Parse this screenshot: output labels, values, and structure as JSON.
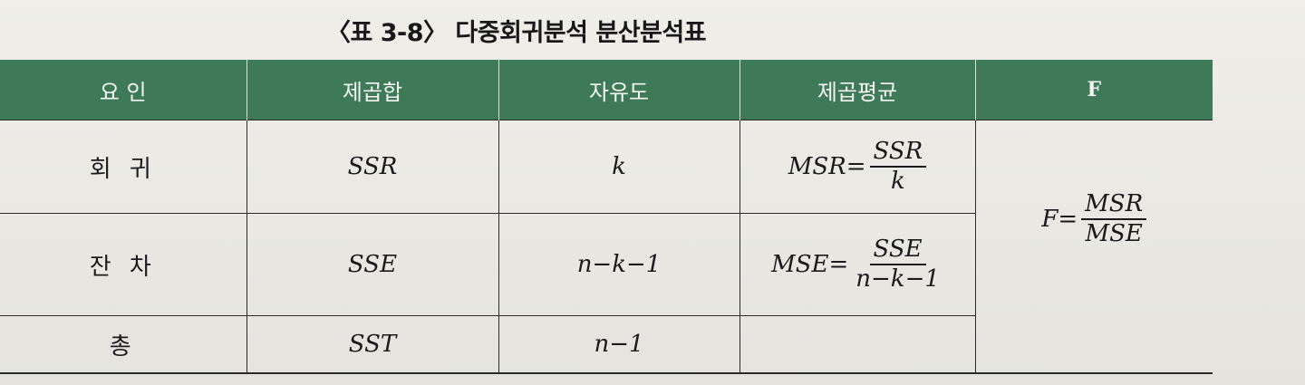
{
  "caption": "〈표 3-8〉 다중회귀분석 분산분석표",
  "headers": {
    "factor": "요 인",
    "ss": "제곱합",
    "df": "자유도",
    "ms": "제곱평균",
    "f": "F"
  },
  "rows": {
    "regression": {
      "label": "회 귀",
      "ss": "SSR",
      "df": "k",
      "ms_lhs": "MSR=",
      "ms_num": "SSR",
      "ms_den": "k"
    },
    "residual": {
      "label": "잔 차",
      "ss": "SSE",
      "df": "n−k−1",
      "ms_lhs": "MSE=",
      "ms_num": "SSE",
      "ms_den": "n−k−1"
    },
    "total": {
      "label": "총",
      "ss": "SST",
      "df": "n−1"
    }
  },
  "f_formula": {
    "lhs": "F=",
    "num": "MSR",
    "den": "MSE"
  },
  "colors": {
    "header_bg": "#3e7a57",
    "header_text": "#f4f6f2",
    "rule": "#2a2a2a"
  }
}
